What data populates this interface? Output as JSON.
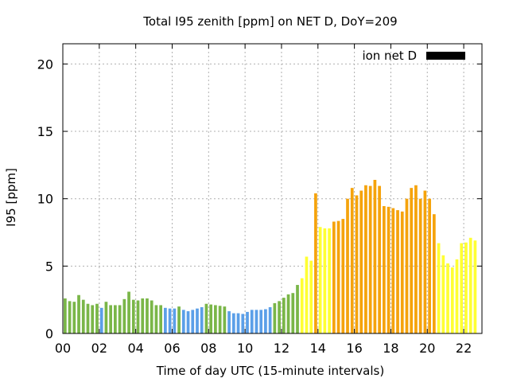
{
  "chart_data": {
    "type": "bar",
    "title": "Total I95 zenith [ppm] on NET D, DoY=209",
    "xlabel": "Time of day UTC (15-minute intervals)",
    "ylabel": "I95 [ppm]",
    "xlim": [
      0,
      23
    ],
    "ylim": [
      0,
      21.5
    ],
    "x_ticks": [
      "00",
      "02",
      "04",
      "06",
      "08",
      "10",
      "12",
      "14",
      "16",
      "18",
      "20",
      "22"
    ],
    "y_ticks": [
      "0",
      "5",
      "10",
      "15",
      "20"
    ],
    "grid": true,
    "legend": {
      "position": "top-right",
      "entries": [
        {
          "label": "ion net D",
          "color": "#000000"
        }
      ]
    },
    "bin_width_hours": 0.25,
    "series": [
      {
        "values": [
          2.6,
          2.4,
          2.35,
          2.85,
          2.5,
          2.2,
          2.1,
          2.2,
          1.9,
          2.35,
          2.1,
          2.1,
          2.1,
          2.55,
          3.1,
          2.5,
          2.45,
          2.6,
          2.6,
          2.45,
          2.1,
          2.1,
          1.9,
          1.85,
          1.85,
          2.0,
          1.75,
          1.65,
          1.75,
          1.85,
          1.95,
          2.2,
          2.15,
          2.1,
          2.05,
          2.0,
          1.65,
          1.5,
          1.5,
          1.45,
          1.6,
          1.75,
          1.75,
          1.75,
          1.8,
          1.95,
          2.25,
          2.4,
          2.65,
          2.9,
          3.0,
          3.6,
          4.1,
          5.7,
          5.4,
          10.4,
          7.9,
          7.8,
          7.8,
          8.3,
          8.35,
          8.5,
          10.0,
          10.8,
          10.25,
          10.6,
          11.0,
          10.95,
          11.4,
          10.95,
          9.45,
          9.4,
          9.3,
          9.15,
          9.05,
          10.0,
          10.8,
          11.0,
          10.0,
          10.6,
          10.0,
          8.85,
          6.7,
          5.8,
          5.2,
          4.9,
          5.5,
          6.7,
          6.75,
          7.1,
          6.9
        ]
      }
    ],
    "colors": {
      "green": "#7ab648",
      "blue": "#5b9fe8",
      "yellow": "#ffff33",
      "orange": "#f5a30c",
      "grid": "#b0b0b0",
      "legend_swatch": "#000000"
    },
    "bar_color_codes": [
      "green",
      "green",
      "green",
      "green",
      "green",
      "green",
      "green",
      "green",
      "blue",
      "green",
      "green",
      "green",
      "green",
      "green",
      "green",
      "green",
      "green",
      "green",
      "green",
      "green",
      "green",
      "green",
      "blue",
      "blue",
      "blue",
      "green",
      "blue",
      "blue",
      "blue",
      "blue",
      "blue",
      "green",
      "green",
      "green",
      "green",
      "green",
      "blue",
      "blue",
      "blue",
      "blue",
      "blue",
      "blue",
      "blue",
      "blue",
      "blue",
      "blue",
      "green",
      "green",
      "green",
      "green",
      "green",
      "green",
      "yellow",
      "yellow",
      "yellow",
      "orange",
      "yellow",
      "yellow",
      "yellow",
      "orange",
      "orange",
      "orange",
      "orange",
      "orange",
      "orange",
      "orange",
      "orange",
      "orange",
      "orange",
      "orange",
      "orange",
      "orange",
      "orange",
      "orange",
      "orange",
      "orange",
      "orange",
      "orange",
      "orange",
      "orange",
      "orange",
      "orange",
      "yellow",
      "yellow",
      "yellow",
      "yellow",
      "yellow",
      "yellow",
      "yellow",
      "yellow",
      "yellow"
    ]
  }
}
